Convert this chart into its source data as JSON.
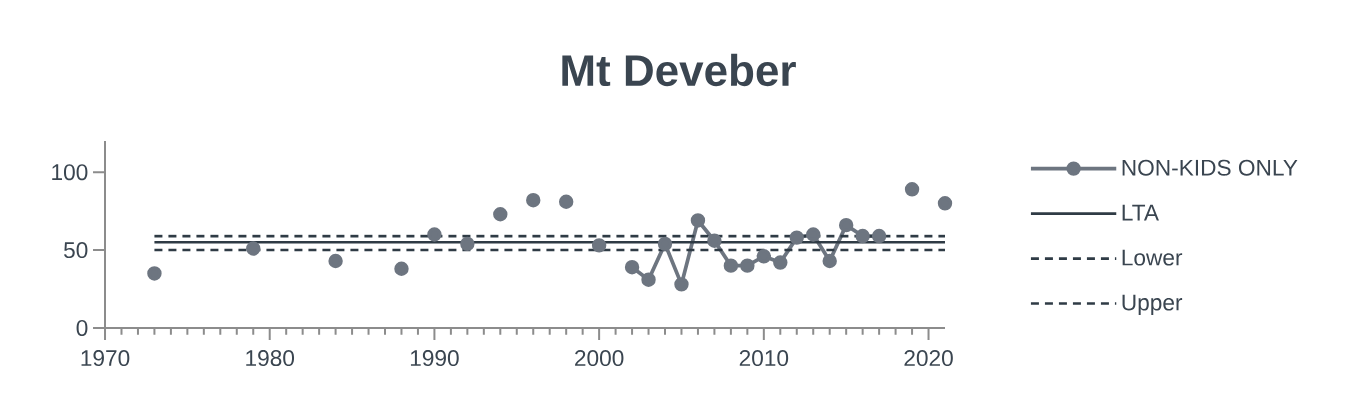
{
  "chart_data": {
    "type": "line",
    "title": "Mt Deveber",
    "xlim": [
      1970,
      2021
    ],
    "xticks": [
      1970,
      1980,
      1990,
      2000,
      2010,
      2020
    ],
    "ylim": [
      0,
      120
    ],
    "yticks": [
      0,
      50,
      100
    ],
    "legend": "right",
    "series": [
      {
        "name": "NON-KIDS ONLY",
        "color": "#6d7580",
        "marker": "circle",
        "line_style": "solid",
        "x": [
          1973,
          1974,
          1975,
          1976,
          1977,
          1978,
          1979,
          1980,
          1981,
          1982,
          1983,
          1984,
          1985,
          1986,
          1987,
          1988,
          1989,
          1990,
          1991,
          1992,
          1993,
          1994,
          1995,
          1996,
          1997,
          1998,
          1999,
          2000,
          2001,
          2002,
          2003,
          2004,
          2005,
          2006,
          2007,
          2008,
          2009,
          2010,
          2011,
          2012,
          2013,
          2014,
          2015,
          2016,
          2017,
          2018,
          2019,
          2020,
          2021
        ],
        "values": [
          35,
          null,
          null,
          null,
          null,
          null,
          51,
          null,
          null,
          null,
          null,
          43,
          null,
          null,
          null,
          38,
          null,
          60,
          null,
          54,
          null,
          73,
          null,
          82,
          null,
          81,
          null,
          53,
          null,
          39,
          31,
          54,
          28,
          69,
          56,
          40,
          40,
          46,
          42,
          58,
          60,
          43,
          66,
          59,
          59,
          null,
          89,
          null,
          80
        ]
      },
      {
        "name": "LTA",
        "color": "#2f3b45",
        "line_style": "solid",
        "x": [
          1973,
          2021
        ],
        "values": [
          55,
          55
        ]
      },
      {
        "name": "Lower",
        "color": "#2f3b45",
        "line_style": "dashed",
        "x": [
          1973,
          2021
        ],
        "values": [
          50,
          50
        ]
      },
      {
        "name": "Upper",
        "color": "#2f3b45",
        "line_style": "dashed",
        "x": [
          1973,
          2021
        ],
        "values": [
          59,
          59
        ]
      }
    ]
  }
}
